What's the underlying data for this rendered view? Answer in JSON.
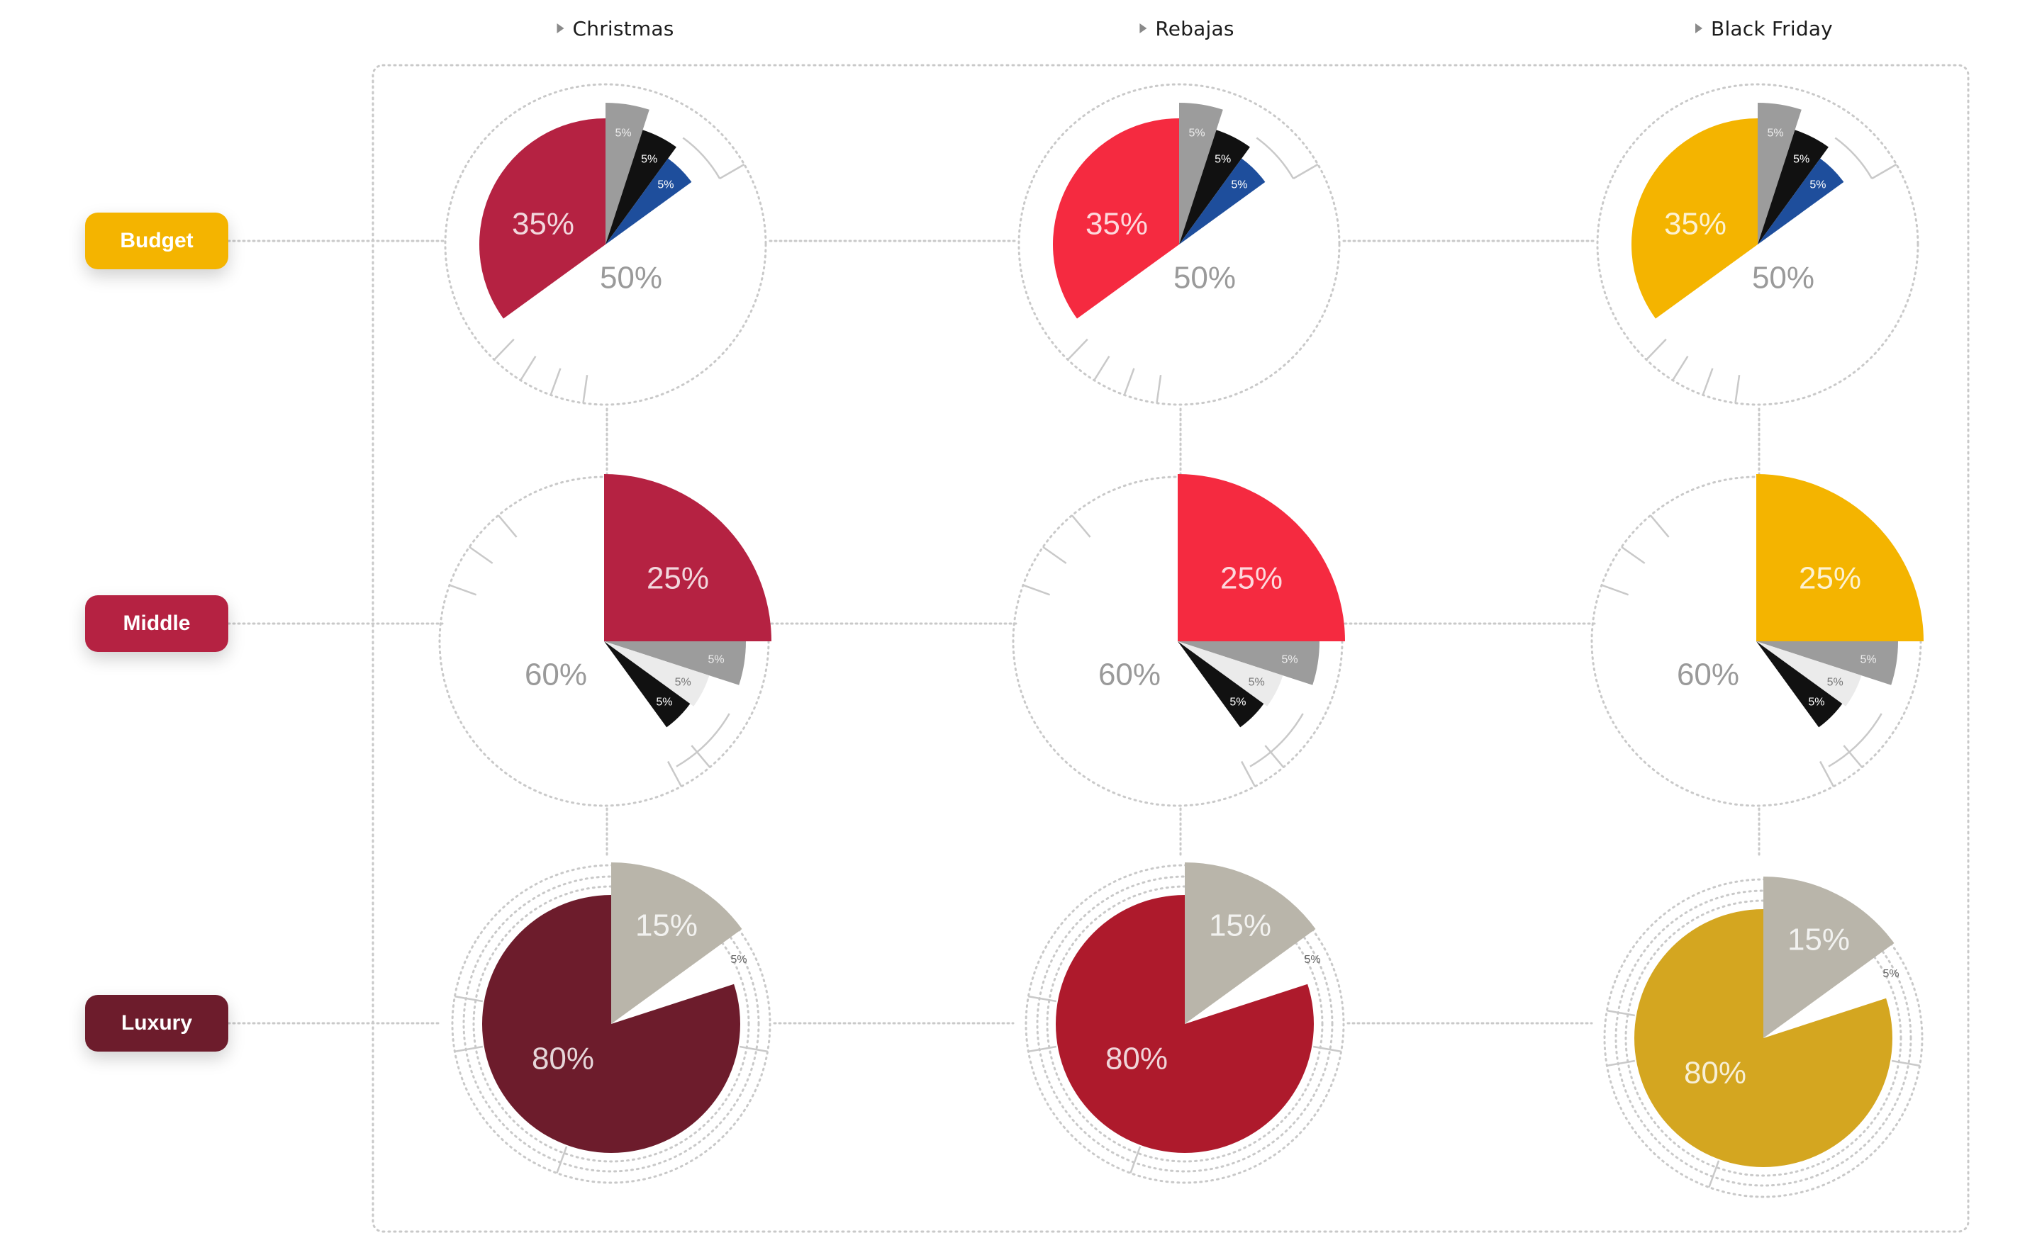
{
  "columns": [
    {
      "label": "Christmas"
    },
    {
      "label": "Rebajas"
    },
    {
      "label": "Black Friday"
    }
  ],
  "rows": [
    {
      "label": "Budget",
      "color": "#F4B400"
    },
    {
      "label": "Middle",
      "color": "#B52242"
    },
    {
      "label": "Luxury",
      "color": "#6D1C2C"
    }
  ],
  "chart_data": {
    "type": "pie",
    "rows": [
      "Budget",
      "Middle",
      "Luxury"
    ],
    "columns": [
      "Christmas",
      "Rebajas",
      "Black Friday"
    ],
    "column_colors": {
      "Christmas": {
        "Budget": "#B52242",
        "Middle": "#B52242",
        "Luxury": "#6D1C2C"
      },
      "Rebajas": {
        "Budget": "#F52A40",
        "Middle": "#F52A40",
        "Luxury": "#AE1A2C"
      },
      "Black Friday": {
        "Budget": "#F4B400",
        "Middle": "#F4B400",
        "Luxury": "#D4A620"
      }
    },
    "segments": {
      "Budget": [
        {
          "value": 5,
          "label": "5%",
          "color": "#9C9C9C"
        },
        {
          "value": 5,
          "label": "5%",
          "color": "#111111"
        },
        {
          "value": 5,
          "label": "5%",
          "color": "#1E4E9C"
        },
        {
          "value": 50,
          "label": "50%",
          "color": "none"
        },
        {
          "value": 35,
          "label": "35%",
          "color": "accent"
        }
      ],
      "Middle": [
        {
          "value": 25,
          "label": "25%",
          "color": "accent"
        },
        {
          "value": 5,
          "label": "5%",
          "color": "#9C9C9C"
        },
        {
          "value": 5,
          "label": "5%",
          "color": "#EBEBEB"
        },
        {
          "value": 5,
          "label": "5%",
          "color": "#111111"
        },
        {
          "value": 60,
          "label": "60%",
          "color": "none"
        }
      ],
      "Luxury": [
        {
          "value": 15,
          "label": "15%",
          "color": "#B9B5AA"
        },
        {
          "value": 5,
          "label": "5%",
          "color": "none"
        },
        {
          "value": 80,
          "label": "80%",
          "color": "accent"
        }
      ]
    }
  }
}
